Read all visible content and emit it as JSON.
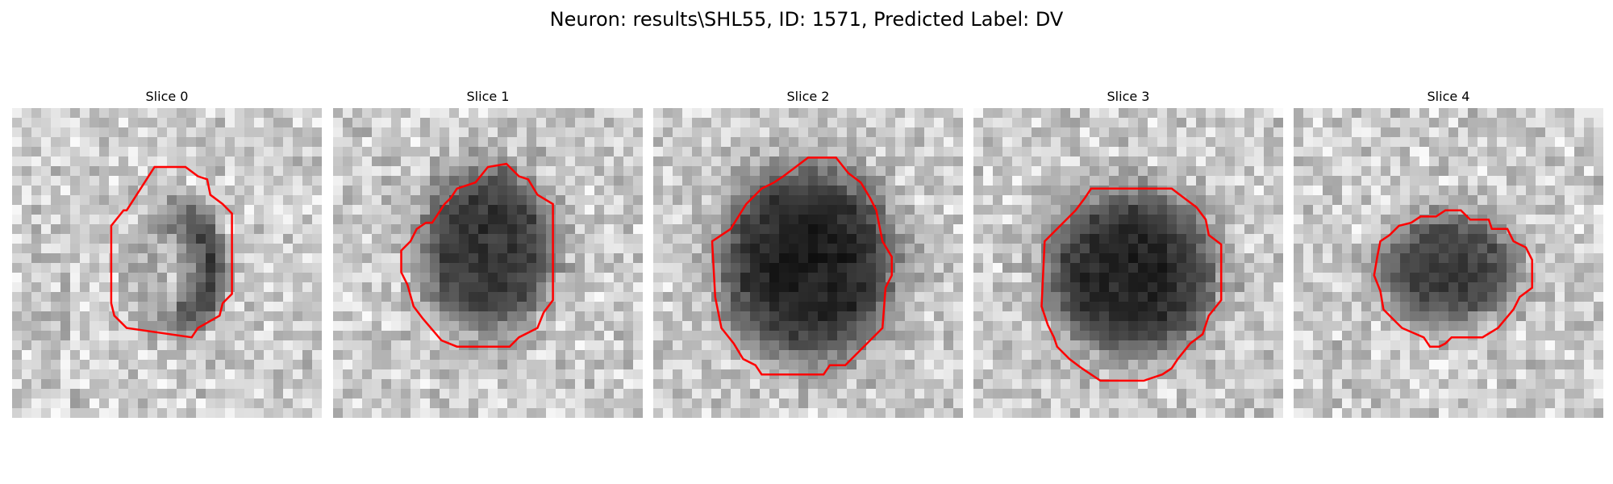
{
  "figure": {
    "title": "Neuron: results\\SHL55, ID: 1571, Predicted Label: DV"
  },
  "panels": [
    {
      "title": "Slice 0"
    },
    {
      "title": "Slice 1"
    },
    {
      "title": "Slice 2"
    },
    {
      "title": "Slice 3"
    },
    {
      "title": "Slice 4"
    }
  ],
  "colors": {
    "contour": "#ff0000",
    "background": "#ffffff"
  }
}
